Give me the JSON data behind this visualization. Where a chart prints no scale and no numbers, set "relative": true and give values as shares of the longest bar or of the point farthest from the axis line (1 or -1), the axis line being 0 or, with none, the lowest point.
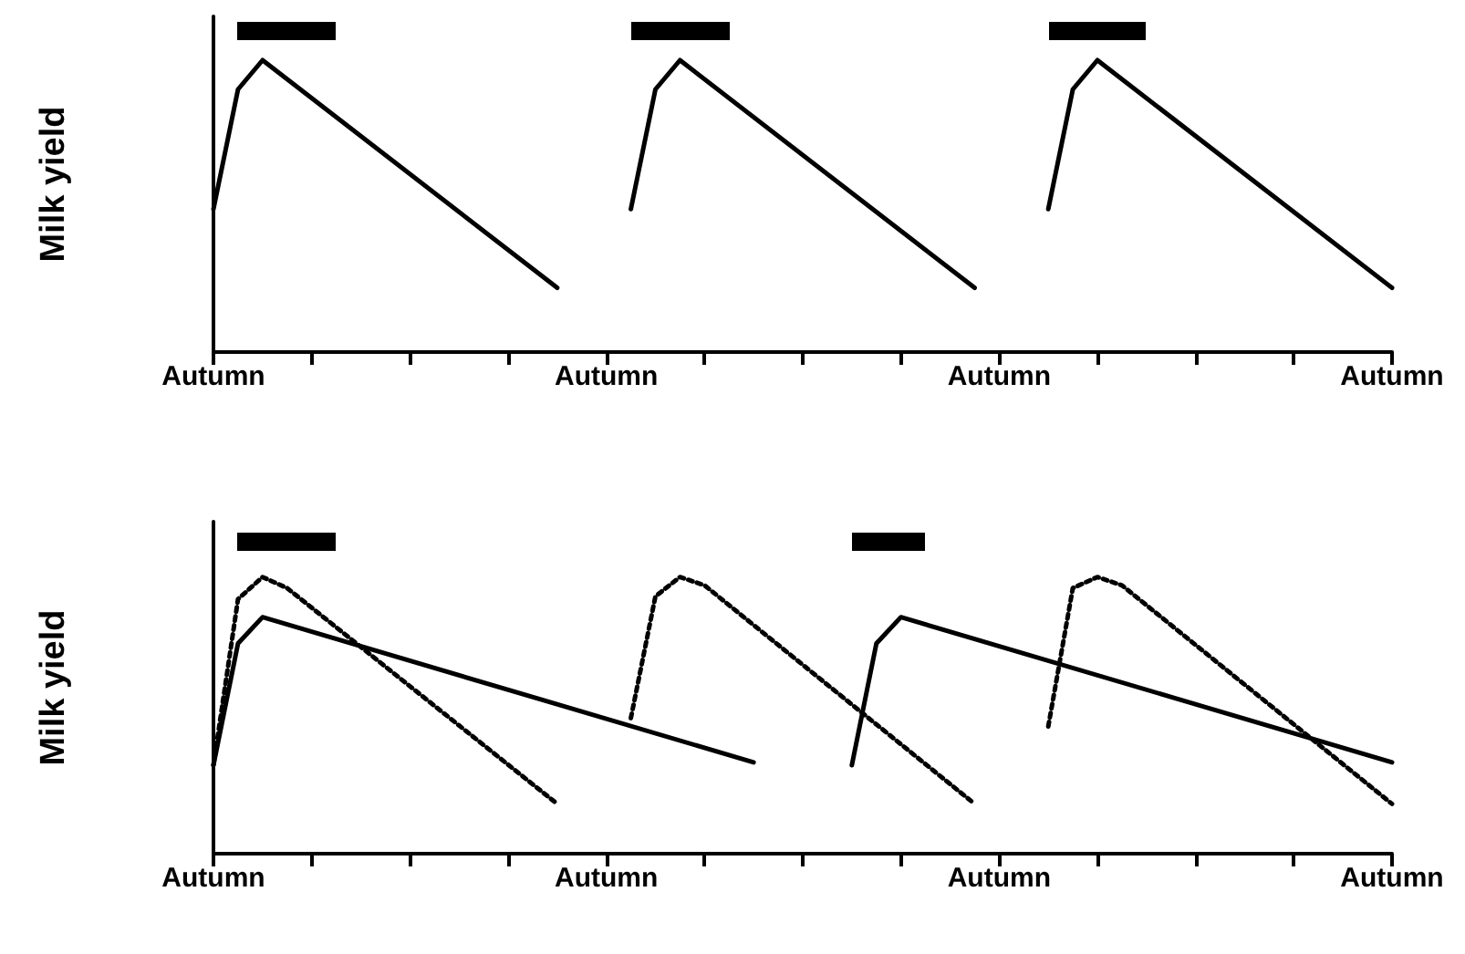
{
  "chart_data": [
    {
      "type": "line",
      "relative": true,
      "ylabel": "Milk yield",
      "categories": [
        "Autumn",
        null,
        null,
        null,
        null,
        null,
        null,
        null,
        null,
        null,
        null,
        null,
        null,
        null,
        null,
        null,
        "Autumn",
        null,
        null,
        null,
        null,
        null,
        null,
        null,
        null,
        null,
        null,
        null,
        null,
        null,
        null,
        null,
        "Autumn",
        null,
        null,
        null,
        null,
        null,
        null,
        null,
        null,
        null,
        null,
        null,
        null,
        null,
        null,
        null,
        "Autumn"
      ],
      "grid": false,
      "marker": "none",
      "line_style": "solid",
      "series": [
        {
          "color": "#000000",
          "values": [
            0.49,
            0.9,
            1.0,
            null,
            null,
            null,
            null,
            null,
            null,
            null,
            null,
            null,
            null,
            null,
            0.22,
            null,
            null,
            null,
            null,
            null,
            null,
            null,
            null,
            null,
            null,
            null,
            null,
            null,
            null,
            null,
            null,
            null,
            null,
            null,
            null,
            null,
            null,
            null,
            null,
            null,
            null,
            null,
            null,
            null,
            null,
            null,
            null,
            null,
            null
          ]
        },
        {
          "color": "#000000",
          "values": [
            null,
            null,
            null,
            null,
            null,
            null,
            null,
            null,
            null,
            null,
            null,
            null,
            null,
            null,
            null,
            null,
            null,
            0.49,
            0.9,
            1.0,
            null,
            null,
            null,
            null,
            null,
            null,
            null,
            null,
            null,
            null,
            null,
            0.22,
            null,
            null,
            null,
            null,
            null,
            null,
            null,
            null,
            null,
            null,
            null,
            null,
            null,
            null,
            null,
            null,
            null
          ]
        },
        {
          "color": "#000000",
          "values": [
            null,
            null,
            null,
            null,
            null,
            null,
            null,
            null,
            null,
            null,
            null,
            null,
            null,
            null,
            null,
            null,
            null,
            null,
            null,
            null,
            null,
            null,
            null,
            null,
            null,
            null,
            null,
            null,
            null,
            null,
            null,
            null,
            null,
            null,
            0.49,
            0.9,
            1.0,
            null,
            null,
            null,
            null,
            null,
            null,
            null,
            null,
            null,
            null,
            null,
            0.22
          ]
        }
      ]
    },
    {
      "type": "line",
      "relative": true,
      "ylabel": "Milk yield",
      "categories": [
        "Autumn",
        null,
        null,
        null,
        null,
        null,
        null,
        null,
        null,
        null,
        null,
        null,
        null,
        null,
        null,
        null,
        "Autumn",
        null,
        null,
        null,
        null,
        null,
        null,
        null,
        null,
        null,
        null,
        null,
        null,
        null,
        null,
        null,
        "Autumn",
        null,
        null,
        null,
        null,
        null,
        null,
        null,
        null,
        null,
        null,
        null,
        null,
        null,
        null,
        null,
        "Autumn"
      ],
      "grid": false,
      "marker": "none",
      "series": [
        {
          "color": "#000000",
          "line_style": "solid",
          "values": [
            0.32,
            0.76,
            0.855,
            null,
            null,
            null,
            null,
            null,
            null,
            null,
            null,
            null,
            null,
            null,
            null,
            null,
            null,
            null,
            null,
            null,
            null,
            null,
            0.33,
            null,
            null,
            null,
            null,
            null,
            null,
            null,
            null,
            null,
            null,
            null,
            null,
            null,
            null,
            null,
            null,
            null,
            null,
            null,
            null,
            null,
            null,
            null,
            null,
            null,
            null
          ]
        },
        {
          "color": "#000000",
          "line_style": "solid",
          "values": [
            null,
            null,
            null,
            null,
            null,
            null,
            null,
            null,
            null,
            null,
            null,
            null,
            null,
            null,
            null,
            null,
            null,
            null,
            null,
            null,
            null,
            null,
            null,
            null,
            null,
            null,
            0.32,
            0.76,
            0.855,
            null,
            null,
            null,
            null,
            null,
            null,
            null,
            null,
            null,
            null,
            null,
            null,
            null,
            null,
            null,
            null,
            null,
            null,
            null,
            0.33
          ]
        },
        {
          "color": "#000000",
          "line_style": "dotted",
          "values": [
            0.32,
            0.92,
            1.0,
            0.96,
            null,
            null,
            null,
            null,
            null,
            null,
            null,
            null,
            null,
            null,
            0.18,
            null,
            null,
            null,
            null,
            null,
            null,
            null,
            null,
            null,
            null,
            null,
            null,
            null,
            null,
            null,
            null,
            null,
            null,
            null,
            null,
            null,
            null,
            null,
            null,
            null,
            null,
            null,
            null,
            null,
            null,
            null,
            null,
            null,
            null
          ]
        },
        {
          "color": "#000000",
          "line_style": "dotted",
          "values": [
            null,
            null,
            null,
            null,
            null,
            null,
            null,
            null,
            null,
            null,
            null,
            null,
            null,
            null,
            null,
            null,
            null,
            0.49,
            0.93,
            1.0,
            0.97,
            null,
            null,
            null,
            null,
            null,
            null,
            null,
            null,
            null,
            null,
            0.18,
            null,
            null,
            null,
            null,
            null,
            null,
            null,
            null,
            null,
            null,
            null,
            null,
            null,
            null,
            null,
            null,
            null
          ]
        },
        {
          "color": "#000000",
          "line_style": "dotted",
          "values": [
            null,
            null,
            null,
            null,
            null,
            null,
            null,
            null,
            null,
            null,
            null,
            null,
            null,
            null,
            null,
            null,
            null,
            null,
            null,
            null,
            null,
            null,
            null,
            null,
            null,
            null,
            null,
            null,
            null,
            null,
            null,
            null,
            null,
            null,
            0.46,
            0.96,
            1.0,
            0.97,
            null,
            null,
            null,
            null,
            null,
            null,
            null,
            null,
            null,
            null,
            0.18
          ]
        }
      ]
    }
  ]
}
